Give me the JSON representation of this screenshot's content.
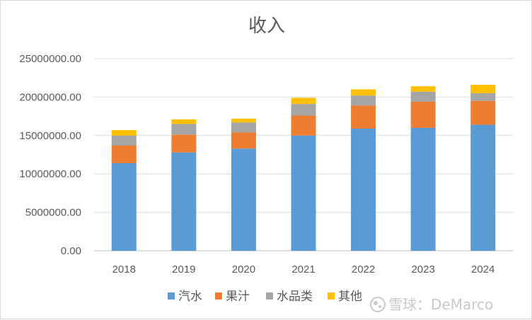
{
  "chart_data": {
    "type": "bar",
    "stacked": true,
    "title": "收入",
    "xlabel": "",
    "ylabel": "",
    "categories": [
      "2018",
      "2019",
      "2020",
      "2021",
      "2022",
      "2023",
      "2024"
    ],
    "ylim": [
      0,
      25000000
    ],
    "yticks": [
      0,
      5000000,
      10000000,
      15000000,
      20000000,
      25000000
    ],
    "ytick_labels": [
      "0.00",
      "5000000.00",
      "10000000.00",
      "15000000.00",
      "20000000.00",
      "25000000.00"
    ],
    "grid": true,
    "legend_position": "bottom",
    "series": [
      {
        "name": "汽水",
        "color": "#5b9bd5",
        "values": [
          11400000,
          12800000,
          13300000,
          15000000,
          15900000,
          16000000,
          16400000
        ]
      },
      {
        "name": "果汁",
        "color": "#ed7d31",
        "values": [
          2300000,
          2300000,
          2100000,
          2600000,
          3000000,
          3400000,
          3100000
        ]
      },
      {
        "name": "水品类",
        "color": "#a5a5a5",
        "values": [
          1300000,
          1400000,
          1300000,
          1500000,
          1300000,
          1300000,
          1000000
        ]
      },
      {
        "name": "其他",
        "color": "#ffc000",
        "values": [
          700000,
          600000,
          500000,
          800000,
          800000,
          700000,
          1100000
        ]
      }
    ]
  },
  "watermark": {
    "text": "雪球：DeMarco",
    "icon": "snowball-logo-icon"
  }
}
